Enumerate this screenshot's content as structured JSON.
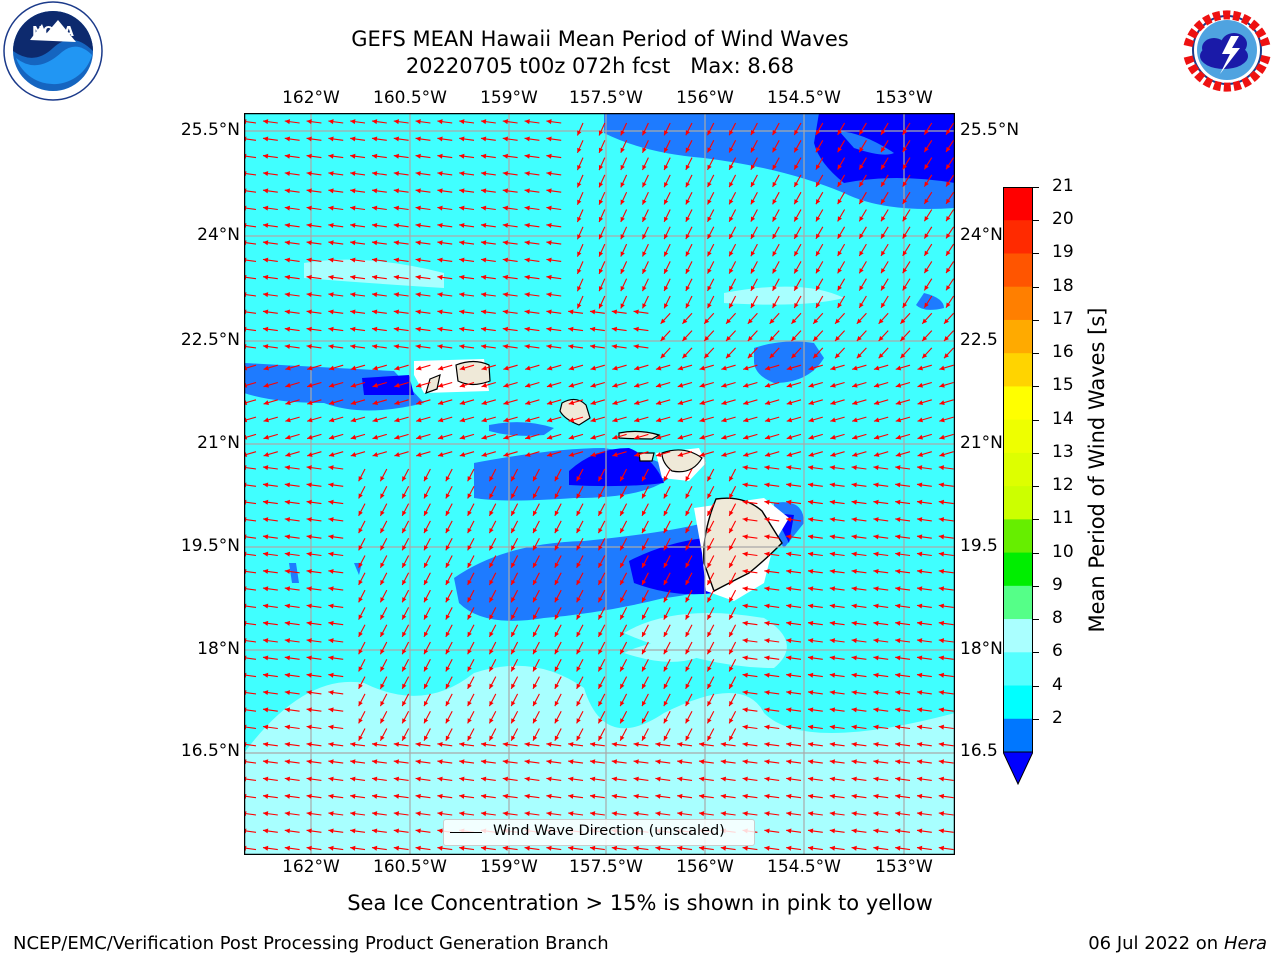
{
  "header": {
    "title_line1": "GEFS MEAN Hawaii Mean Period of Wind Waves",
    "title_line2": "20220705 t00z 072h fcst   Max: 8.68"
  },
  "logos": {
    "noaa_text": "NOAA",
    "noaa_ring": "NATIONAL OCEANIC AND ATMOSPHERIC ADMINISTRATION · U.S. DEPARTMENT OF COMMERCE",
    "nws_ring": "NATIONAL WEATHER SERVICE"
  },
  "map": {
    "lon_ticks": [
      "162°W",
      "160.5°W",
      "159°W",
      "157.5°W",
      "156°W",
      "154.5°W",
      "153°W"
    ],
    "lat_ticks_left": [
      "25.5°N",
      "24°N",
      "22.5°N",
      "21°N",
      "19.5°N",
      "18°N",
      "16.5°N"
    ],
    "lat_ticks_right": [
      "25.5°N",
      "24°N",
      "22.5",
      "21°N",
      "19.5",
      "18°N",
      "16.5"
    ],
    "legend_label": "Wind Wave Direction (unscaled)",
    "arrow_color": "#ff0000",
    "land_color": "#efe9d8"
  },
  "colorbar": {
    "label": "Mean Period of Wind Waves [s]",
    "tick_labels": [
      "21",
      "20",
      "19",
      "18",
      "17",
      "16",
      "15",
      "14",
      "13",
      "12",
      "11",
      "10",
      "9",
      "8",
      "6",
      "4",
      "2"
    ],
    "colors_top_to_bottom": [
      "#ff0000",
      "#ff2a00",
      "#ff5500",
      "#ff7f00",
      "#ffaa00",
      "#ffd400",
      "#ffff00",
      "#eeff00",
      "#ddff00",
      "#ccff00",
      "#66ee00",
      "#00ee00",
      "#55ff88",
      "#aaffff",
      "#55ffff",
      "#00ffff",
      "#0077ff"
    ],
    "under_color": "#0000ff"
  },
  "footer": {
    "sea_ice_note": "Sea Ice Concentration > 15% is shown in pink to yellow",
    "left_credit": "NCEP/EMC/Verification Post Processing Product Generation Branch",
    "right_date": "06 Jul 2022 on ",
    "right_machine": "Hera"
  }
}
